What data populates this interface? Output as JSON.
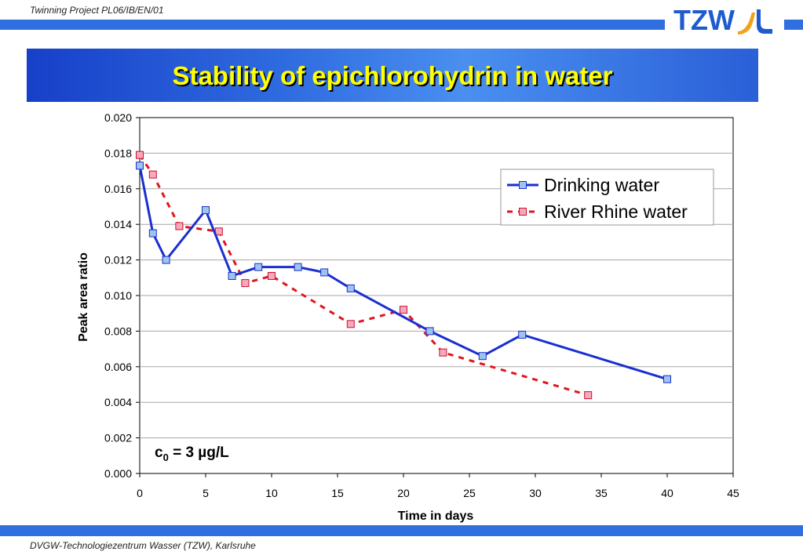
{
  "header": {
    "project": "Twinning Project PL06/IB/EN/01",
    "logo_text": "TZW",
    "title": "Stability of epichlorohydrin in water"
  },
  "footer": {
    "text": "DVGW-Technologiezentrum Wasser (TZW), Karlsruhe"
  },
  "chart_data": {
    "type": "line",
    "xlabel": "Time in days",
    "ylabel": "Peak area ratio",
    "xlim": [
      0,
      45
    ],
    "ylim": [
      0,
      0.02
    ],
    "x_ticks": [
      0,
      5,
      10,
      15,
      20,
      25,
      30,
      35,
      40,
      45
    ],
    "y_ticks": [
      "0.000",
      "0.002",
      "0.004",
      "0.006",
      "0.008",
      "0.010",
      "0.012",
      "0.014",
      "0.016",
      "0.018",
      "0.020"
    ],
    "grid": "horizontal",
    "legend_placement": "top-right",
    "annotation": {
      "base": "c",
      "sub": "0",
      "rest": " = 3 µg/L"
    },
    "series": [
      {
        "name": "Drinking water",
        "color": "#1a2fd0",
        "marker_fill": "#9ec4ee",
        "style": "solid",
        "points": [
          [
            0,
            0.0173
          ],
          [
            1,
            0.0135
          ],
          [
            2,
            0.012
          ],
          [
            5,
            0.0148
          ],
          [
            7,
            0.0111
          ],
          [
            9,
            0.0116
          ],
          [
            12,
            0.0116
          ],
          [
            14,
            0.0113
          ],
          [
            16,
            0.0104
          ],
          [
            22,
            0.008
          ],
          [
            26,
            0.0066
          ],
          [
            29,
            0.0078
          ],
          [
            40,
            0.0053
          ]
        ]
      },
      {
        "name": "River Rhine water",
        "color": "#e0161e",
        "marker_fill": "#f7a9bc",
        "style": "dashed",
        "points": [
          [
            0,
            0.0179
          ],
          [
            1,
            0.0168
          ],
          [
            3,
            0.0139
          ],
          [
            6,
            0.0136
          ],
          [
            8,
            0.0107
          ],
          [
            10,
            0.0111
          ],
          [
            16,
            0.0084
          ],
          [
            20,
            0.0092
          ],
          [
            23,
            0.0068
          ],
          [
            34,
            0.0044
          ]
        ]
      }
    ]
  }
}
